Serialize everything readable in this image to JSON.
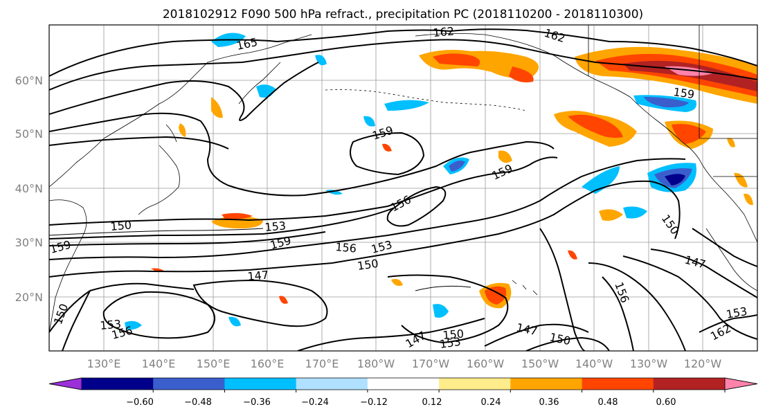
{
  "title": "2018102912 F090 500 hPa refract., precipitation PC (2018110200 - 2018110300)",
  "lat_labels": [
    "20°N",
    "30°N",
    "40°N",
    "50°N",
    "60°N"
  ],
  "lon_labels": [
    "130°E",
    "140°E",
    "150°E",
    "160°E",
    "170°E",
    "180°W",
    "170°W",
    "160°W",
    "150°W",
    "140°W",
    "130°W",
    "120°W"
  ],
  "colorbar": {
    "colors": [
      "#9b30d9",
      "#00008b",
      "#3a5fcd",
      "#00bfff",
      "#b0e0ff",
      "#ffffff",
      "#ffec8b",
      "#ffa500",
      "#ff4500",
      "#b22222",
      "#ff82ab"
    ],
    "tick_labels": [
      "−0.60",
      "−0.48",
      "−0.36",
      "−0.24",
      "−0.12",
      "0.12",
      "0.24",
      "0.36",
      "0.48",
      "0.60"
    ]
  },
  "contour_labels": [
    "165",
    "162",
    "162",
    "159",
    "159",
    "159",
    "156",
    "153",
    "156",
    "153",
    "150",
    "150",
    "159",
    "159",
    "147",
    "150",
    "153",
    "156",
    "147",
    "147",
    "150",
    "153",
    "150",
    "147",
    "156",
    "153",
    "162",
    "150"
  ]
}
